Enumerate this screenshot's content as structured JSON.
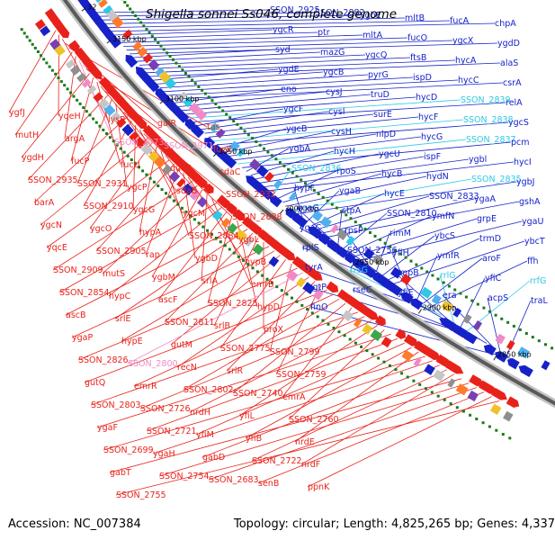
{
  "title": "Shigella sonnei Ss046, complete genome",
  "footer": {
    "accession": "Accession: NC_007384",
    "topology": "Topology: circular; Length: 4,825,265 bp; Genes: 4,337"
  },
  "colors": {
    "forward_strand": "#e8221a",
    "reverse_strand": "#1622c8",
    "rna_genes": "#2ec9e6",
    "pseudo_red": "#f08ac6",
    "pseudo_blue": "#7ad5f0",
    "backbone": "#555555",
    "gc_tick": "#1a7a1a"
  },
  "kbp_ticks": [
    {
      "label": "3150 kbp"
    },
    {
      "label": "3100 kbp"
    },
    {
      "label": "3050 kbp"
    },
    {
      "label": "3000 kbp"
    },
    {
      "label": "2950 kbp"
    },
    {
      "label": "2900 kbp"
    },
    {
      "label": "2850 kbp"
    },
    {
      "label": "32"
    }
  ],
  "labels_blue": [
    "SSON_2925",
    "SSON_2882",
    "ygbE",
    "mltB",
    "fucA",
    "chpA",
    "ygcR",
    "ptr",
    "mltA",
    "fucO",
    "ygcX",
    "ygdD",
    "syd",
    "mazG",
    "ygcQ",
    "ftsB",
    "hycA",
    "alaS",
    "ygdE",
    "ygcB",
    "pyrG",
    "ispD",
    "hycC",
    "csrA",
    "eno",
    "cysJ",
    "truD",
    "hycD",
    "SSON_2839",
    "relA",
    "ygcF",
    "cysI",
    "surE",
    "hycF",
    "SSON_2838",
    "ygcS",
    "ygcB",
    "cysH",
    "nlpD",
    "hycG",
    "SSON_2837",
    "pcm",
    "ygbA",
    "hycH",
    "ygcU",
    "ispF",
    "ygbl",
    "hycI",
    "SSON_2836",
    "rpoS",
    "hycB",
    "hydN",
    "SSON_2835",
    "ygbJ",
    "hypF",
    "ygaB",
    "hycE",
    "SSON_2833",
    "ygaA",
    "gshA",
    "ygaG",
    "stpA",
    "SSON_2810",
    "ymfN",
    "grpE",
    "ygaU",
    "ygaC",
    "rpsP",
    "rimM",
    "ybcS",
    "trmD",
    "ybcT",
    "rplS",
    "SSON_2756",
    "yfiH",
    "ymfR",
    "aroF",
    "ffh",
    "tyrA",
    "rrsG",
    "smpB",
    "rrlG",
    "yfiC",
    "rrfG",
    "kgtP",
    "rseC",
    "yfiE",
    "era",
    "acpS",
    "traL",
    "finO"
  ],
  "labels_red": [
    "ygfJ",
    "yqeH",
    "lysR",
    "galR",
    "tas",
    "mutH",
    "argA",
    "SSON_2973",
    "SSON_2971",
    "fucK",
    "ygdH",
    "fucP",
    "fucU",
    "queF",
    "sdaC",
    "SSON_2935",
    "SSON_2931",
    "ygcP",
    "sdaB",
    "SSON_2932",
    "barA",
    "SSON_2910",
    "ygcG",
    "ygcM",
    "SSON_2888",
    "ygcN",
    "ygcO",
    "hypA",
    "SSON_2884",
    "ygbL",
    "yqcE",
    "SSON_2905",
    "rap",
    "ygbD",
    "hypB",
    "SSON_2909",
    "mutS",
    "ygbM",
    "srlA",
    "emrB",
    "SSON_2854",
    "hypC",
    "ascF",
    "SSON_2825",
    "hypD",
    "ascB",
    "srlE",
    "SSON_2811",
    "srlB",
    "proX",
    "ygaP",
    "hypE",
    "gutM",
    "SSON_2775",
    "SSON_2799",
    "SSON_2826",
    "SSON_2800",
    "recN",
    "srlR",
    "SSON_2759",
    "gutQ",
    "emrR",
    "SSON_2802",
    "SSON_2740",
    "emrA",
    "SSON_2803",
    "SSON_2726",
    "nrdH",
    "yfiL",
    "SSON_2760",
    "ygaF",
    "SSON_2721",
    "yfiM",
    "yfiB",
    "nrdE",
    "SSON_2699",
    "ygaH",
    "gabD",
    "SSON_2722",
    "nrdF",
    "gabT",
    "SSON_2754",
    "SSON_2683",
    "senB",
    "ppnK",
    "SSON_2755"
  ]
}
